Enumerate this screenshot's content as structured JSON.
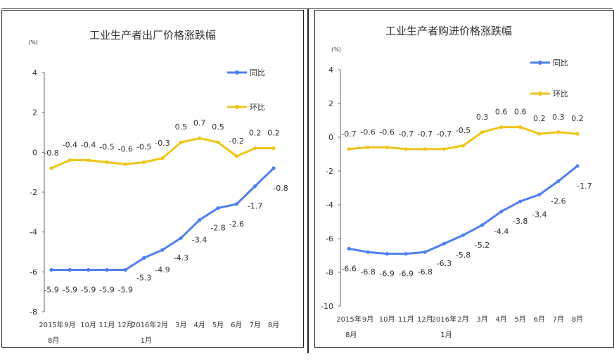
{
  "chart_data": [
    {
      "type": "line",
      "title": "工业生产者出厂价格涨跌幅",
      "unit": "(%)",
      "ylim": [
        -8,
        4
      ],
      "yticks": [
        4,
        2,
        0,
        -2,
        -4,
        -6,
        -8
      ],
      "x_ticks": [
        [
          "2015年",
          "8月"
        ],
        [
          "9月"
        ],
        [
          "10月"
        ],
        [
          "11月"
        ],
        [
          "12月"
        ],
        [
          "2016年",
          "1月"
        ],
        [
          "2月"
        ],
        [
          "3月"
        ],
        [
          "4月"
        ],
        [
          "5月"
        ],
        [
          "6月"
        ],
        [
          "7月"
        ],
        [
          "8月"
        ]
      ],
      "series": [
        {
          "name": "同比",
          "color": "#4f7ff0",
          "values": [
            -5.9,
            -5.9,
            -5.9,
            -5.9,
            -5.9,
            -5.3,
            -4.9,
            -4.3,
            -3.4,
            -2.8,
            -2.6,
            -1.7,
            -0.8
          ]
        },
        {
          "name": "环比",
          "color": "#f0c419",
          "values": [
            -0.8,
            -0.4,
            -0.4,
            -0.5,
            -0.6,
            -0.5,
            -0.3,
            0.5,
            0.7,
            0.5,
            -0.2,
            0.2,
            0.2
          ]
        }
      ],
      "legend": "top-right",
      "grid": false
    },
    {
      "type": "line",
      "title": "工业生产者购进价格涨跌幅",
      "unit": "(%)",
      "ylim": [
        -10,
        4
      ],
      "yticks": [
        4,
        2,
        0,
        -2,
        -4,
        -6,
        -8,
        -10
      ],
      "x_ticks": [
        [
          "2015年",
          "8月"
        ],
        [
          "9月"
        ],
        [
          "10月"
        ],
        [
          "11月"
        ],
        [
          "12月"
        ],
        [
          "2016年",
          "1月"
        ],
        [
          "2月"
        ],
        [
          "3月"
        ],
        [
          "4月"
        ],
        [
          "5月"
        ],
        [
          "6月"
        ],
        [
          "7月"
        ],
        [
          "8月"
        ]
      ],
      "series": [
        {
          "name": "同比",
          "color": "#4f7ff0",
          "values": [
            -6.6,
            -6.8,
            -6.9,
            -6.9,
            -6.8,
            -6.3,
            -5.8,
            -5.2,
            -4.4,
            -3.8,
            -3.4,
            -2.6,
            -1.7
          ]
        },
        {
          "name": "环比",
          "color": "#f0c419",
          "values": [
            -0.7,
            -0.6,
            -0.6,
            -0.7,
            -0.7,
            -0.7,
            -0.5,
            0.3,
            0.6,
            0.6,
            0.2,
            0.3,
            0.2
          ]
        }
      ],
      "legend": "top-right",
      "grid": false
    }
  ]
}
